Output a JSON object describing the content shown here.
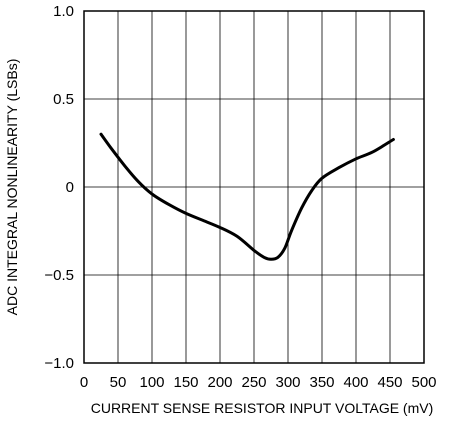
{
  "chart_data": {
    "type": "line",
    "title": "",
    "xlabel": "CURRENT SENSE RESISTOR INPUT VOLTAGE (mV)",
    "ylabel": "ADC INTEGRAL NONLINEARITY (LSBs)",
    "xlim": [
      0,
      500
    ],
    "ylim": [
      -1.0,
      1.0
    ],
    "xticks": [
      0,
      50,
      100,
      150,
      200,
      250,
      300,
      350,
      400,
      450,
      500
    ],
    "xtick_labels": [
      "0",
      "50",
      "100",
      "150",
      "200",
      "250",
      "300",
      "350",
      "400",
      "450",
      "500"
    ],
    "yticks": [
      -1.0,
      -0.5,
      0,
      0.5,
      1.0
    ],
    "ytick_labels": [
      "−1.0",
      "−0.5",
      "0",
      "0.5",
      "1.0"
    ],
    "grid": true,
    "series": [
      {
        "x": [
          25,
          40,
          60,
          80,
          100,
          125,
          150,
          175,
          200,
          225,
          250,
          265,
          275,
          285,
          295,
          305,
          320,
          335,
          350,
          375,
          400,
          425,
          455
        ],
        "y": [
          0.3,
          0.22,
          0.12,
          0.03,
          -0.04,
          -0.1,
          -0.15,
          -0.19,
          -0.23,
          -0.28,
          -0.36,
          -0.4,
          -0.41,
          -0.4,
          -0.35,
          -0.25,
          -0.12,
          -0.02,
          0.05,
          0.11,
          0.16,
          0.2,
          0.27
        ],
        "color": "#000000"
      }
    ]
  }
}
